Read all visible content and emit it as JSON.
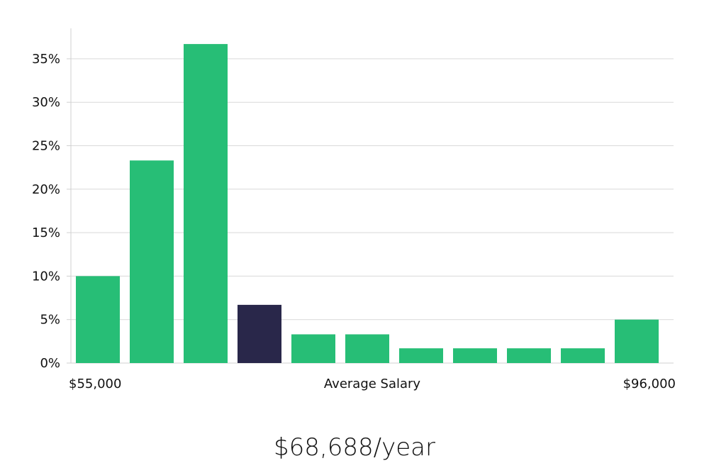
{
  "chart_data": {
    "type": "bar",
    "x_start_label": "$55,000",
    "x_center_label": "Average Salary",
    "x_end_label": "$96,000",
    "y_tick_labels": [
      "0%",
      "5%",
      "10%",
      "15%",
      "20%",
      "25%",
      "30%",
      "35%"
    ],
    "y_ticks": [
      0,
      5,
      10,
      15,
      20,
      25,
      30,
      35
    ],
    "ylim": [
      0,
      38.5
    ],
    "values": [
      10,
      23.3,
      36.7,
      6.7,
      3.3,
      3.3,
      1.7,
      1.7,
      1.7,
      1.7,
      5
    ],
    "highlight_index": 3,
    "grid": true,
    "colors": {
      "bar": "#27be76",
      "highlight": "#29274a",
      "grid": "#d9d9d9",
      "axis": "#d0d0d0"
    }
  },
  "average_salary": "$68,688/year"
}
